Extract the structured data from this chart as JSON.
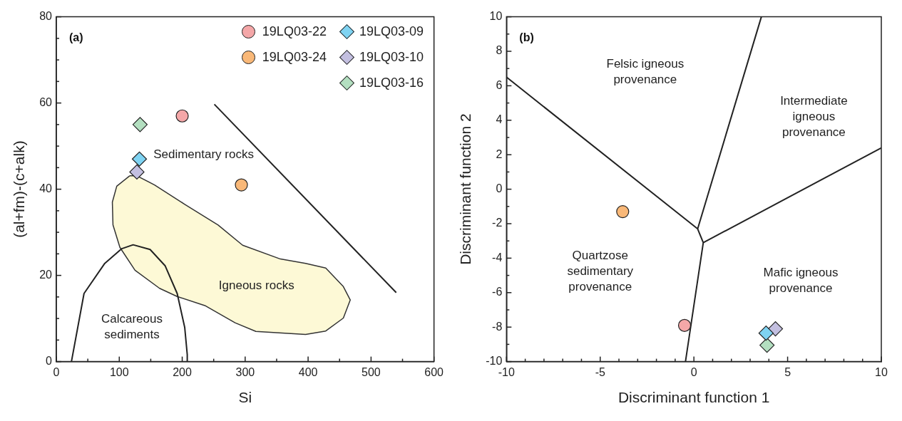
{
  "chart_data": [
    {
      "type": "scatter",
      "title": "(a)",
      "xlabel": "Si",
      "ylabel": "(al+fm)-(c+alk)",
      "xlim": [
        0,
        600
      ],
      "ylim": [
        0,
        80
      ],
      "xticks": [
        0,
        {
          "value": 50,
          "label": null
        },
        100,
        {
          "value": 150,
          "label": null
        },
        200,
        {
          "value": 250,
          "label": null
        },
        300,
        {
          "value": 350,
          "label": null
        },
        400,
        {
          "value": 450,
          "label": null
        },
        500,
        {
          "value": 550,
          "label": null
        },
        600
      ],
      "yticks": [
        0,
        {
          "value": 5,
          "label": null
        },
        {
          "value": 10,
          "label": null
        },
        {
          "value": 15,
          "label": null
        },
        20,
        {
          "value": 25,
          "label": null
        },
        {
          "value": 30,
          "label": null
        },
        {
          "value": 35,
          "label": null
        },
        40,
        {
          "value": 45,
          "label": null
        },
        {
          "value": 50,
          "label": null
        },
        {
          "value": 55,
          "label": null
        },
        60,
        {
          "value": 65,
          "label": null
        },
        {
          "value": 70,
          "label": null
        },
        {
          "value": 75,
          "label": null
        },
        80
      ],
      "legend": "top right",
      "series": [
        {
          "type": "area",
          "color": "#fdf9d6",
          "x": [
            116.5,
            96,
            89,
            90,
            101,
            125,
            164,
            192,
            236,
            284,
            317,
            396,
            428,
            456,
            467,
            456,
            428,
            396,
            356,
            296,
            257,
            204,
            156,
            128,
            116.5
          ],
          "values": [
            43.1,
            40.7,
            37,
            31.7,
            26.5,
            21.2,
            17,
            15.1,
            13,
            9,
            7,
            6.3,
            7.1,
            10.1,
            14.3,
            17.4,
            21.7,
            22.8,
            23.8,
            27,
            31.7,
            36.5,
            41,
            43.1,
            43.1
          ]
        },
        {
          "type": "line",
          "color": "#222222",
          "marker": "none",
          "x": [
            24,
            44,
            77,
            104,
            122,
            149,
            173,
            192,
            204,
            208,
            208
          ],
          "values": [
            0,
            15.8,
            22.8,
            26.2,
            27.1,
            26,
            22.2,
            15.8,
            7.9,
            1.6,
            0
          ]
        },
        {
          "type": "line",
          "color": "#222222",
          "marker": "none",
          "x": [
            251,
            540
          ],
          "values": [
            59.7,
            16
          ]
        },
        {
          "type": "scatter",
          "name": "19LQ03-22",
          "color": "#f4a7a8",
          "marker": "circle",
          "x": [
            200
          ],
          "values": [
            57
          ]
        },
        {
          "type": "scatter",
          "name": "19LQ03-24",
          "color": "#f9b878",
          "marker": "circle",
          "x": [
            294
          ],
          "values": [
            41
          ]
        },
        {
          "type": "scatter",
          "name": "19LQ03-09",
          "color": "#7fd3f2",
          "marker": "diamond",
          "x": [
            132
          ],
          "values": [
            47
          ]
        },
        {
          "type": "scatter",
          "name": "19LQ03-10",
          "color": "#c3bfe0",
          "marker": "diamond",
          "x": [
            128
          ],
          "values": [
            44
          ]
        },
        {
          "type": "scatter",
          "name": "19LQ03-16",
          "color": "#b3dfc0",
          "marker": "diamond",
          "x": [
            133
          ],
          "values": [
            55
          ]
        }
      ],
      "annotations": [
        "Sedimentary rocks",
        "Igneous rocks",
        "Calcareous\nsediments"
      ]
    },
    {
      "type": "scatter",
      "title": "(b)",
      "xlabel": "Discriminant function 1",
      "ylabel": "Discriminant function 2",
      "xlim": [
        -10,
        10
      ],
      "ylim": [
        -10,
        10
      ],
      "xticks": [
        -10,
        {
          "value": -9,
          "label": null
        },
        {
          "value": -8,
          "label": null
        },
        {
          "value": -7,
          "label": null
        },
        {
          "value": -6,
          "label": null
        },
        -5,
        {
          "value": -4,
          "label": null
        },
        {
          "value": -3,
          "label": null
        },
        {
          "value": -2,
          "label": null
        },
        {
          "value": -1,
          "label": null
        },
        0,
        {
          "value": 1,
          "label": null
        },
        {
          "value": 2,
          "label": null
        },
        {
          "value": 3,
          "label": null
        },
        {
          "value": 4,
          "label": null
        },
        5,
        {
          "value": 6,
          "label": null
        },
        {
          "value": 7,
          "label": null
        },
        {
          "value": 8,
          "label": null
        },
        {
          "value": 9,
          "label": null
        },
        10
      ],
      "yticks": [
        -10,
        {
          "value": -9,
          "label": null
        },
        -8,
        {
          "value": -7,
          "label": null
        },
        -6,
        {
          "value": -5,
          "label": null
        },
        -4,
        {
          "value": -3,
          "label": null
        },
        -2,
        {
          "value": -1,
          "label": null
        },
        0,
        {
          "value": 1,
          "label": null
        },
        2,
        {
          "value": 3,
          "label": null
        },
        4,
        {
          "value": 5,
          "label": null
        },
        6,
        {
          "value": 7,
          "label": null
        },
        8,
        {
          "value": 9,
          "label": null
        },
        10
      ],
      "series": [
        {
          "type": "line",
          "color": "#222222",
          "marker": "none",
          "x": [
            -10,
            0.2,
            0.5,
            -0.45
          ],
          "values": [
            6.5,
            -2.3,
            -3.1,
            -10
          ]
        },
        {
          "type": "line",
          "color": "#222222",
          "marker": "none",
          "x": [
            0.2,
            3.6
          ],
          "values": [
            -2.3,
            10
          ]
        },
        {
          "type": "line",
          "color": "#222222",
          "marker": "none",
          "x": [
            0.5,
            10
          ],
          "values": [
            -3.1,
            2.4
          ]
        },
        {
          "type": "scatter",
          "color": "#f4a7a8",
          "marker": "circle",
          "x": [
            -0.5
          ],
          "values": [
            -7.9
          ]
        },
        {
          "type": "scatter",
          "color": "#f9b878",
          "marker": "circle",
          "x": [
            -3.8
          ],
          "values": [
            -1.3
          ]
        },
        {
          "type": "scatter",
          "color": "#7fd3f2",
          "marker": "diamond",
          "x": [
            3.85
          ],
          "values": [
            -8.35
          ]
        },
        {
          "type": "scatter",
          "color": "#c3bfe0",
          "marker": "diamond",
          "x": [
            4.35
          ],
          "values": [
            -8.1
          ]
        },
        {
          "type": "scatter",
          "color": "#b3dfc0",
          "marker": "diamond",
          "x": [
            3.9
          ],
          "values": [
            -9.05
          ]
        }
      ],
      "annotations": [
        "Felsic igneous\nprovenance",
        "Intermediate\nigneous\nprovenance",
        "Quartzose\nsedimentary\nprovenance",
        "Mafic igneous\nprovenance"
      ]
    }
  ]
}
